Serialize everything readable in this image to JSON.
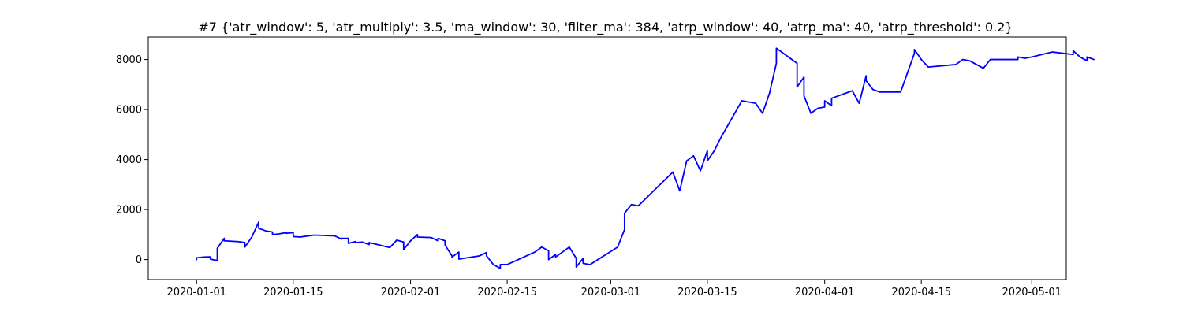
{
  "chart_data": {
    "type": "line",
    "title": "#7 {'atr_window': 5, 'atr_multiply': 3.5, 'ma_window': 30, 'filter_ma': 384, 'atrp_window': 40, 'atrp_ma': 40, 'atrp_threshold': 0.2}",
    "xlabel": "",
    "ylabel": "",
    "xlim": [
      "2019-12-25",
      "2020-05-06"
    ],
    "ylim": [
      -800,
      8900
    ],
    "xticks": [
      "2020-01-01",
      "2020-01-15",
      "2020-02-01",
      "2020-02-15",
      "2020-03-01",
      "2020-03-15",
      "2020-04-01",
      "2020-04-15",
      "2020-05-01"
    ],
    "yticks": [
      0,
      2000,
      4000,
      6000,
      8000
    ],
    "grid": false,
    "colors": {
      "line": "#0000ff",
      "axes": "#000000",
      "background": "#ffffff"
    },
    "series": [
      {
        "values": [
          [
            "2020-01-01",
            0
          ],
          [
            "2020-01-01",
            70
          ],
          [
            "2020-01-02",
            100
          ],
          [
            "2020-01-03",
            110
          ],
          [
            "2020-01-03",
            20
          ],
          [
            "2020-01-04",
            -40
          ],
          [
            "2020-01-04",
            200
          ],
          [
            "2020-01-04",
            450
          ],
          [
            "2020-01-05",
            850
          ],
          [
            "2020-01-05",
            750
          ],
          [
            "2020-01-07",
            720
          ],
          [
            "2020-01-08",
            680
          ],
          [
            "2020-01-08",
            500
          ],
          [
            "2020-01-09",
            900
          ],
          [
            "2020-01-10",
            1500
          ],
          [
            "2020-01-10",
            1250
          ],
          [
            "2020-01-11",
            1150
          ],
          [
            "2020-01-12",
            1100
          ],
          [
            "2020-01-12",
            1000
          ],
          [
            "2020-01-13",
            1030
          ],
          [
            "2020-01-14",
            1080
          ],
          [
            "2020-01-14",
            1050
          ],
          [
            "2020-01-15",
            1080
          ],
          [
            "2020-01-15",
            920
          ],
          [
            "2020-01-16",
            900
          ],
          [
            "2020-01-18",
            980
          ],
          [
            "2020-01-21",
            950
          ],
          [
            "2020-01-22",
            820
          ],
          [
            "2020-01-22",
            850
          ],
          [
            "2020-01-23",
            850
          ],
          [
            "2020-01-23",
            650
          ],
          [
            "2020-01-24",
            720
          ],
          [
            "2020-01-24",
            680
          ],
          [
            "2020-01-25",
            700
          ],
          [
            "2020-01-26",
            600
          ],
          [
            "2020-01-26",
            680
          ],
          [
            "2020-01-29",
            480
          ],
          [
            "2020-01-30",
            780
          ],
          [
            "2020-01-31",
            700
          ],
          [
            "2020-01-31",
            400
          ],
          [
            "2020-02-01",
            750
          ],
          [
            "2020-02-02",
            1000
          ],
          [
            "2020-02-02",
            900
          ],
          [
            "2020-02-04",
            880
          ],
          [
            "2020-02-05",
            750
          ],
          [
            "2020-02-05",
            850
          ],
          [
            "2020-02-06",
            750
          ],
          [
            "2020-02-06",
            580
          ],
          [
            "2020-02-07",
            150
          ],
          [
            "2020-02-07",
            100
          ],
          [
            "2020-02-08",
            300
          ],
          [
            "2020-02-08",
            220
          ],
          [
            "2020-02-08",
            20
          ],
          [
            "2020-02-11",
            150
          ],
          [
            "2020-02-12",
            280
          ],
          [
            "2020-02-12",
            150
          ],
          [
            "2020-02-13",
            -200
          ],
          [
            "2020-02-14",
            -350
          ],
          [
            "2020-02-14",
            -200
          ],
          [
            "2020-02-15",
            -200
          ],
          [
            "2020-02-19",
            300
          ],
          [
            "2020-02-20",
            500
          ],
          [
            "2020-02-21",
            350
          ],
          [
            "2020-02-21",
            200
          ],
          [
            "2020-02-21",
            0
          ],
          [
            "2020-02-22",
            200
          ],
          [
            "2020-02-22",
            100
          ],
          [
            "2020-02-24",
            500
          ],
          [
            "2020-02-25",
            50
          ],
          [
            "2020-02-25",
            -300
          ],
          [
            "2020-02-26",
            50
          ],
          [
            "2020-02-26",
            -150
          ],
          [
            "2020-02-27",
            -200
          ],
          [
            "2020-03-02",
            500
          ],
          [
            "2020-03-03",
            1200
          ],
          [
            "2020-03-03",
            1850
          ],
          [
            "2020-03-04",
            2200
          ],
          [
            "2020-03-05",
            2150
          ],
          [
            "2020-03-10",
            3500
          ],
          [
            "2020-03-11",
            2750
          ],
          [
            "2020-03-12",
            3950
          ],
          [
            "2020-03-13",
            4150
          ],
          [
            "2020-03-14",
            3550
          ],
          [
            "2020-03-15",
            4350
          ],
          [
            "2020-03-15",
            3950
          ],
          [
            "2020-03-16",
            4350
          ],
          [
            "2020-03-17",
            4900
          ],
          [
            "2020-03-20",
            6350
          ],
          [
            "2020-03-22",
            6250
          ],
          [
            "2020-03-23",
            5850
          ],
          [
            "2020-03-24",
            6650
          ],
          [
            "2020-03-25",
            7850
          ],
          [
            "2020-03-25",
            8450
          ],
          [
            "2020-03-28",
            7850
          ],
          [
            "2020-03-28",
            6900
          ],
          [
            "2020-03-29",
            7300
          ],
          [
            "2020-03-29",
            6550
          ],
          [
            "2020-03-30",
            5850
          ],
          [
            "2020-03-31",
            6050
          ],
          [
            "2020-04-01",
            6100
          ],
          [
            "2020-04-01",
            6350
          ],
          [
            "2020-04-02",
            6150
          ],
          [
            "2020-04-02",
            6450
          ],
          [
            "2020-04-05",
            6750
          ],
          [
            "2020-04-06",
            6250
          ],
          [
            "2020-04-07",
            7350
          ],
          [
            "2020-04-07",
            7150
          ],
          [
            "2020-04-08",
            6800
          ],
          [
            "2020-04-09",
            6700
          ],
          [
            "2020-04-12",
            6700
          ],
          [
            "2020-04-14",
            8250
          ],
          [
            "2020-04-14",
            8400
          ],
          [
            "2020-04-15",
            8000
          ],
          [
            "2020-04-16",
            7700
          ],
          [
            "2020-04-20",
            7800
          ],
          [
            "2020-04-21",
            8000
          ],
          [
            "2020-04-22",
            7950
          ],
          [
            "2020-04-24",
            7650
          ],
          [
            "2020-04-25",
            8000
          ],
          [
            "2020-04-27",
            8000
          ],
          [
            "2020-04-29",
            8000
          ],
          [
            "2020-04-29",
            8100
          ],
          [
            "2020-04-30",
            8050
          ],
          [
            "2020-05-01",
            8100
          ],
          [
            "2020-05-04",
            8300
          ],
          [
            "2020-05-07",
            8200
          ],
          [
            "2020-05-07",
            8350
          ],
          [
            "2020-05-08",
            8100
          ],
          [
            "2020-05-09",
            7950
          ],
          [
            "2020-05-09",
            8100
          ],
          [
            "2020-05-10",
            8000
          ]
        ]
      }
    ]
  }
}
